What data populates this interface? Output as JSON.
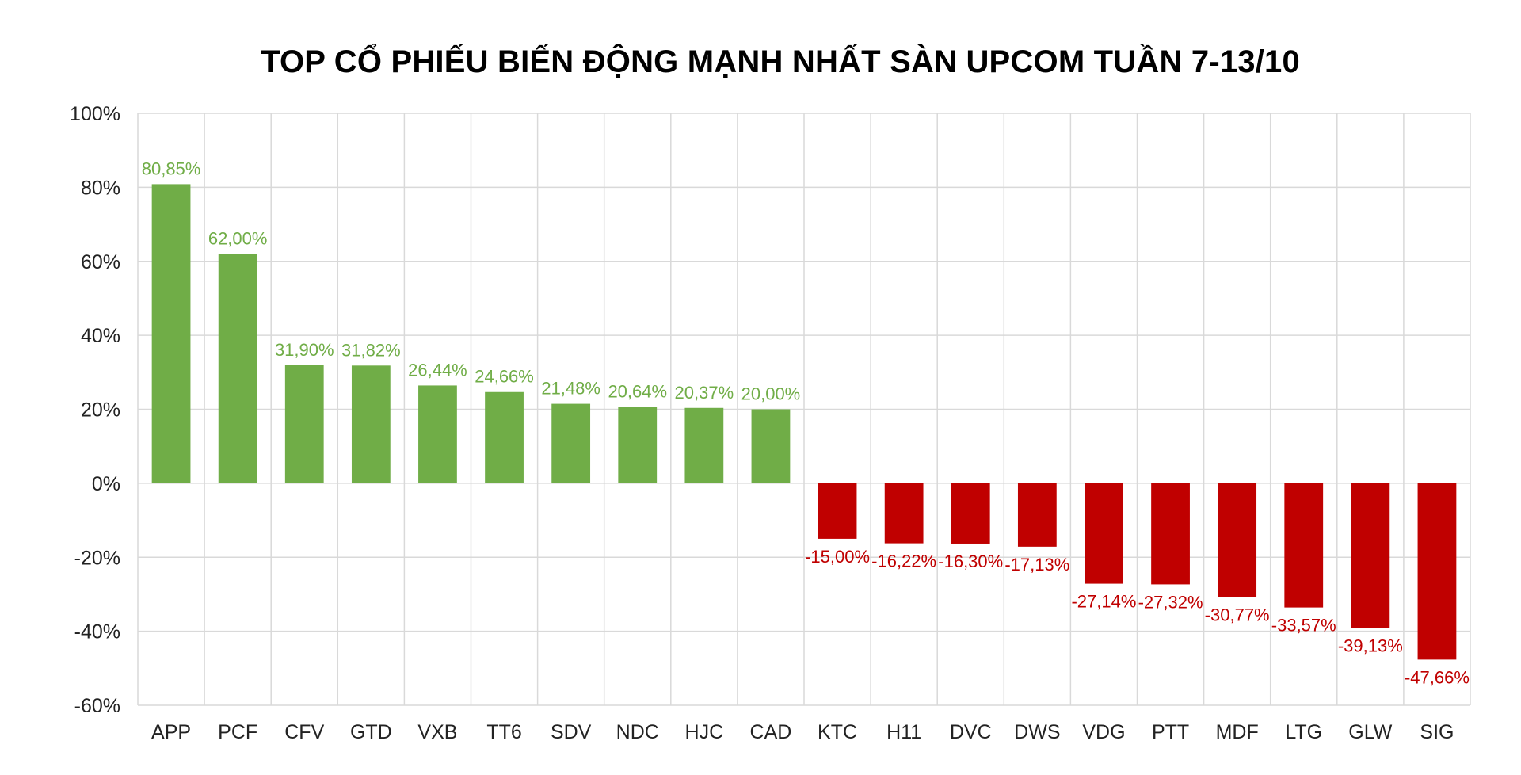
{
  "chart_data": {
    "type": "bar",
    "title": "TOP CỔ PHIẾU BIẾN ĐỘNG MẠNH NHẤT SÀN UPCOM TUẦN 7-13/10",
    "xlabel": "",
    "ylabel": "",
    "ylim": [
      -60,
      100
    ],
    "yticks": [
      "100%",
      "80%",
      "60%",
      "40%",
      "20%",
      "0%",
      "-20%",
      "-40%",
      "-60%"
    ],
    "grid": true,
    "legend": "none",
    "categories": [
      "APP",
      "PCF",
      "CFV",
      "GTD",
      "VXB",
      "TT6",
      "SDV",
      "NDC",
      "HJC",
      "CAD",
      "KTC",
      "H11",
      "DVC",
      "DWS",
      "VDG",
      "PTT",
      "MDF",
      "LTG",
      "GLW",
      "SIG"
    ],
    "values": [
      80.85,
      62.0,
      31.9,
      31.82,
      26.44,
      24.66,
      21.48,
      20.64,
      20.37,
      20.0,
      -15.0,
      -16.22,
      -16.3,
      -17.13,
      -27.14,
      -27.32,
      -30.77,
      -33.57,
      -39.13,
      -47.66
    ],
    "data_labels": [
      "80,85%",
      "62,00%",
      "31,90%",
      "31,82%",
      "26,44%",
      "24,66%",
      "21,48%",
      "20,64%",
      "20,37%",
      "20,00%",
      "-15,00%",
      "-16,22%",
      "-16,30%",
      "-17,13%",
      "-27,14%",
      "-27,32%",
      "-30,77%",
      "-33,57%",
      "-39,13%",
      "-47,66%"
    ],
    "colors": {
      "positive_bar": "#70ad47",
      "negative_bar": "#c00000",
      "positive_label": "#70ad47",
      "negative_label": "#c00000",
      "grid": "#d9d9d9"
    }
  }
}
